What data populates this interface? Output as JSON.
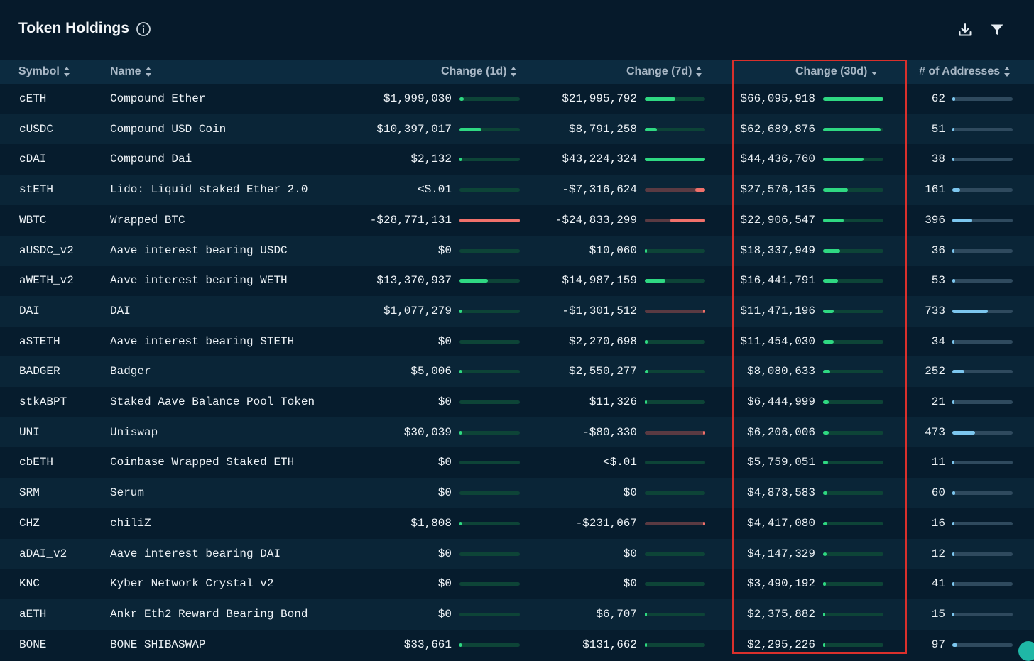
{
  "header": {
    "title": "Token Holdings"
  },
  "columns": {
    "symbol": "Symbol",
    "name": "Name",
    "change_1d": "Change (1d)",
    "change_7d": "Change (7d)",
    "change_30d": "Change (30d)",
    "addresses": "# of Addresses"
  },
  "colors": {
    "positive": "#2fd882",
    "negative": "#f0716b",
    "track": "#0d4437",
    "neg_track": "#5a3a42",
    "address_fill": "#7cc6ee",
    "address_track": "#2f4a5e",
    "highlight": "#d9302c"
  },
  "icons": [
    "info-icon",
    "download-icon",
    "filter-icon",
    "sort-icon"
  ],
  "rows": [
    {
      "symbol": "cETH",
      "name": "Compound Ether",
      "c1d": "$1,999,030",
      "c1d_v": 1999030,
      "c7d": "$21,995,792",
      "c7d_v": 21995792,
      "c30d": "$66,095,918",
      "c30d_v": 66095918,
      "addr": "62",
      "addr_v": 62
    },
    {
      "symbol": "cUSDC",
      "name": "Compound USD Coin",
      "c1d": "$10,397,017",
      "c1d_v": 10397017,
      "c7d": "$8,791,258",
      "c7d_v": 8791258,
      "c30d": "$62,689,876",
      "c30d_v": 62689876,
      "addr": "51",
      "addr_v": 51
    },
    {
      "symbol": "cDAI",
      "name": "Compound Dai",
      "c1d": "$2,132",
      "c1d_v": 2132,
      "c7d": "$43,224,324",
      "c7d_v": 43224324,
      "c30d": "$44,436,760",
      "c30d_v": 44436760,
      "addr": "38",
      "addr_v": 38
    },
    {
      "symbol": "stETH",
      "name": "Lido: Liquid staked Ether 2.0",
      "c1d": "<$.01",
      "c1d_v": 0,
      "c7d": "-$7,316,624",
      "c7d_v": -7316624,
      "c30d": "$27,576,135",
      "c30d_v": 27576135,
      "addr": "161",
      "addr_v": 161
    },
    {
      "symbol": "WBTC",
      "name": "Wrapped BTC",
      "c1d": "-$28,771,131",
      "c1d_v": -28771131,
      "c7d": "-$24,833,299",
      "c7d_v": -24833299,
      "c30d": "$22,906,547",
      "c30d_v": 22906547,
      "addr": "396",
      "addr_v": 396
    },
    {
      "symbol": "aUSDC_v2",
      "name": "Aave interest bearing USDC",
      "c1d": "$0",
      "c1d_v": 0,
      "c7d": "$10,060",
      "c7d_v": 10060,
      "c30d": "$18,337,949",
      "c30d_v": 18337949,
      "addr": "36",
      "addr_v": 36
    },
    {
      "symbol": "aWETH_v2",
      "name": "Aave interest bearing WETH",
      "c1d": "$13,370,937",
      "c1d_v": 13370937,
      "c7d": "$14,987,159",
      "c7d_v": 14987159,
      "c30d": "$16,441,791",
      "c30d_v": 16441791,
      "addr": "53",
      "addr_v": 53
    },
    {
      "symbol": "DAI",
      "name": "DAI",
      "c1d": "$1,077,279",
      "c1d_v": 1077279,
      "c7d": "-$1,301,512",
      "c7d_v": -1301512,
      "c30d": "$11,471,196",
      "c30d_v": 11471196,
      "addr": "733",
      "addr_v": 733
    },
    {
      "symbol": "aSTETH",
      "name": "Aave interest bearing STETH",
      "c1d": "$0",
      "c1d_v": 0,
      "c7d": "$2,270,698",
      "c7d_v": 2270698,
      "c30d": "$11,454,030",
      "c30d_v": 11454030,
      "addr": "34",
      "addr_v": 34
    },
    {
      "symbol": "BADGER",
      "name": "Badger",
      "c1d": "$5,006",
      "c1d_v": 5006,
      "c7d": "$2,550,277",
      "c7d_v": 2550277,
      "c30d": "$8,080,633",
      "c30d_v": 8080633,
      "addr": "252",
      "addr_v": 252
    },
    {
      "symbol": "stkABPT",
      "name": "Staked Aave Balance Pool Token",
      "c1d": "$0",
      "c1d_v": 0,
      "c7d": "$11,326",
      "c7d_v": 11326,
      "c30d": "$6,444,999",
      "c30d_v": 6444999,
      "addr": "21",
      "addr_v": 21
    },
    {
      "symbol": "UNI",
      "name": "Uniswap",
      "c1d": "$30,039",
      "c1d_v": 30039,
      "c7d": "-$80,330",
      "c7d_v": -80330,
      "c30d": "$6,206,006",
      "c30d_v": 6206006,
      "addr": "473",
      "addr_v": 473
    },
    {
      "symbol": "cbETH",
      "name": "Coinbase Wrapped Staked ETH",
      "c1d": "$0",
      "c1d_v": 0,
      "c7d": "<$.01",
      "c7d_v": 0,
      "c30d": "$5,759,051",
      "c30d_v": 5759051,
      "addr": "11",
      "addr_v": 11
    },
    {
      "symbol": "SRM",
      "name": "Serum",
      "c1d": "$0",
      "c1d_v": 0,
      "c7d": "$0",
      "c7d_v": 0,
      "c30d": "$4,878,583",
      "c30d_v": 4878583,
      "addr": "60",
      "addr_v": 60
    },
    {
      "symbol": "CHZ",
      "name": "chiliZ",
      "c1d": "$1,808",
      "c1d_v": 1808,
      "c7d": "-$231,067",
      "c7d_v": -231067,
      "c30d": "$4,417,080",
      "c30d_v": 4417080,
      "addr": "16",
      "addr_v": 16
    },
    {
      "symbol": "aDAI_v2",
      "name": "Aave interest bearing DAI",
      "c1d": "$0",
      "c1d_v": 0,
      "c7d": "$0",
      "c7d_v": 0,
      "c30d": "$4,147,329",
      "c30d_v": 4147329,
      "addr": "12",
      "addr_v": 12
    },
    {
      "symbol": "KNC",
      "name": "Kyber Network Crystal v2",
      "c1d": "$0",
      "c1d_v": 0,
      "c7d": "$0",
      "c7d_v": 0,
      "c30d": "$3,490,192",
      "c30d_v": 3490192,
      "addr": "41",
      "addr_v": 41
    },
    {
      "symbol": "aETH",
      "name": "Ankr Eth2 Reward Bearing Bond",
      "c1d": "$0",
      "c1d_v": 0,
      "c7d": "$6,707",
      "c7d_v": 6707,
      "c30d": "$2,375,882",
      "c30d_v": 2375882,
      "addr": "15",
      "addr_v": 15
    },
    {
      "symbol": "BONE",
      "name": "BONE SHIBASWAP",
      "c1d": "$33,661",
      "c1d_v": 33661,
      "c7d": "$131,662",
      "c7d_v": 131662,
      "c30d": "$2,295,226",
      "c30d_v": 2295226,
      "addr": "97",
      "addr_v": 97
    }
  ]
}
